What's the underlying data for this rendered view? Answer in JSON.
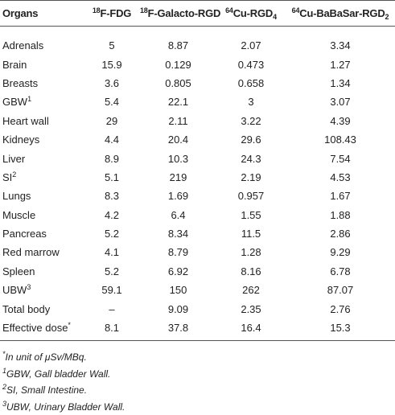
{
  "table": {
    "header": [
      [
        {
          "text": "Organs"
        }
      ],
      [
        {
          "text": "18",
          "style": "sup"
        },
        {
          "text": "F-FDG"
        }
      ],
      [
        {
          "text": "18",
          "style": "sup"
        },
        {
          "text": "F-Galacto-RGD"
        }
      ],
      [
        {
          "text": "64",
          "style": "sup"
        },
        {
          "text": "Cu-RGD"
        },
        {
          "text": "4",
          "style": "sub"
        }
      ],
      [
        {
          "text": "64",
          "style": "sup"
        },
        {
          "text": "Cu-BaBaSar-RGD"
        },
        {
          "text": "2",
          "style": "sub"
        }
      ]
    ],
    "rows": [
      [
        [
          {
            "text": "Adrenals"
          }
        ],
        5,
        8.87,
        2.07,
        3.34
      ],
      [
        [
          {
            "text": "Brain"
          }
        ],
        15.9,
        0.129,
        0.473,
        1.27
      ],
      [
        [
          {
            "text": "Breasts"
          }
        ],
        3.6,
        0.805,
        0.658,
        1.34
      ],
      [
        [
          {
            "text": "GBW"
          },
          {
            "text": "1",
            "style": "sup"
          }
        ],
        5.4,
        22.1,
        3,
        3.07
      ],
      [
        [
          {
            "text": "Heart wall"
          }
        ],
        29,
        2.11,
        3.22,
        4.39
      ],
      [
        [
          {
            "text": "Kidneys"
          }
        ],
        4.4,
        20.4,
        29.6,
        108.43
      ],
      [
        [
          {
            "text": "Liver"
          }
        ],
        8.9,
        10.3,
        24.3,
        7.54
      ],
      [
        [
          {
            "text": "SI"
          },
          {
            "text": "2",
            "style": "sup"
          }
        ],
        5.1,
        219,
        2.19,
        4.53
      ],
      [
        [
          {
            "text": "Lungs"
          }
        ],
        8.3,
        1.69,
        0.957,
        1.67
      ],
      [
        [
          {
            "text": "Muscle"
          }
        ],
        4.2,
        6.4,
        1.55,
        1.88
      ],
      [
        [
          {
            "text": "Pancreas"
          }
        ],
        5.2,
        8.34,
        11.5,
        2.86
      ],
      [
        [
          {
            "text": "Red marrow"
          }
        ],
        4.1,
        8.79,
        1.28,
        9.29
      ],
      [
        [
          {
            "text": "Spleen"
          }
        ],
        5.2,
        6.92,
        8.16,
        6.78
      ],
      [
        [
          {
            "text": "UBW"
          },
          {
            "text": "3",
            "style": "sup"
          }
        ],
        59.1,
        150,
        262,
        87.07
      ],
      [
        [
          {
            "text": "Total body"
          }
        ],
        "–",
        9.09,
        2.35,
        2.76
      ],
      [
        [
          {
            "text": "Effective dose"
          },
          {
            "text": "*",
            "style": "sup"
          }
        ],
        8.1,
        37.8,
        16.4,
        15.3
      ]
    ]
  },
  "footnotes": [
    [
      {
        "text": "*",
        "style": "sup"
      },
      {
        "text": "In unit of μSv/MBq."
      }
    ],
    [
      {
        "text": "1",
        "style": "sup"
      },
      {
        "text": "GBW, Gall bladder Wall."
      }
    ],
    [
      {
        "text": "2",
        "style": "sup"
      },
      {
        "text": "SI, Small Intestine."
      }
    ],
    [
      {
        "text": "3",
        "style": "sup"
      },
      {
        "text": "UBW, Urinary Bladder Wall."
      }
    ]
  ]
}
